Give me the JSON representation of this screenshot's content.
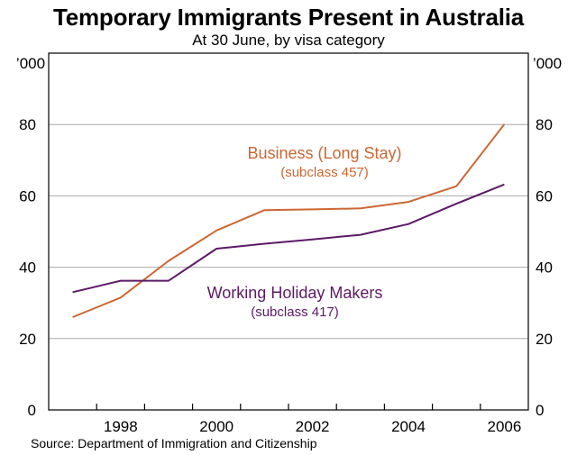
{
  "chart_data": {
    "type": "line",
    "title": "Temporary Immigrants Present in Australia",
    "subtitle": "At 30 June, by visa category",
    "source": "Source: Department of Immigration and Citizenship",
    "unit_left": "’000",
    "unit_right": "’000",
    "xlabel": "",
    "ylabel": "",
    "x": [
      1997,
      1998,
      1999,
      2000,
      2001,
      2002,
      2003,
      2004,
      2005,
      2006
    ],
    "xlim": [
      1996.5,
      2006.5
    ],
    "ylim": [
      0,
      100
    ],
    "x_ticks": [
      "1998",
      "2000",
      "2002",
      "2004",
      "2006"
    ],
    "y_ticks": [
      "0",
      "20",
      "40",
      "60",
      "80"
    ],
    "grid": "horizontal",
    "series": [
      {
        "name": "Business (Long Stay)",
        "label_sub": "(subclass 457)",
        "color": "#cc6633",
        "values": [
          26,
          31.5,
          41.8,
          50.3,
          56,
          56.2,
          56.5,
          58.3,
          62.7,
          80.1
        ]
      },
      {
        "name": "Working Holiday Makers",
        "label_sub": "(subclass 417)",
        "color": "#5c1a66",
        "values": [
          33,
          36.2,
          36.2,
          45.2,
          46.6,
          47.8,
          49.1,
          52.1,
          57.8,
          63.2
        ]
      }
    ]
  }
}
